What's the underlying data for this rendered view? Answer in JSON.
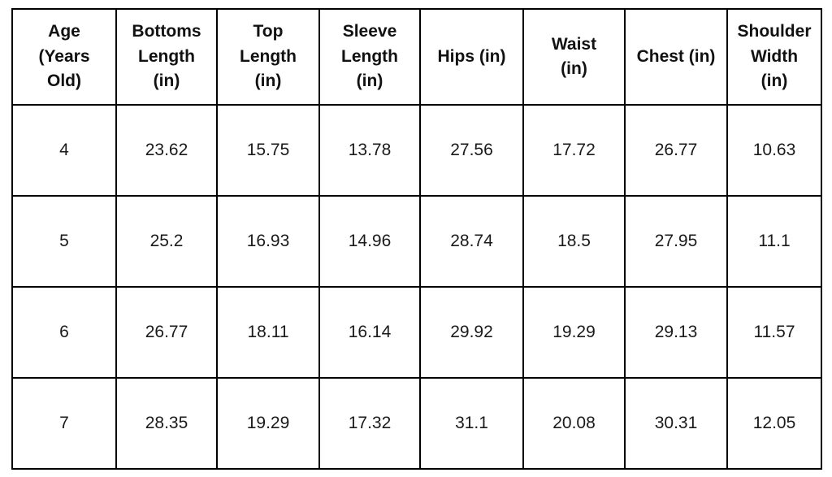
{
  "table": {
    "headers": [
      "Age\n(Years\nOld)",
      "Bottoms\nLength\n(in)",
      "Top\nLength\n(in)",
      "Sleeve\nLength\n(in)",
      "Hips (in)",
      "Waist\n(in)",
      "Chest (in)",
      "Shoulder\nWidth\n(in)"
    ],
    "rows": [
      [
        "4",
        "23.62",
        "15.75",
        "13.78",
        "27.56",
        "17.72",
        "26.77",
        "10.63"
      ],
      [
        "5",
        "25.2",
        "16.93",
        "14.96",
        "28.74",
        "18.5",
        "27.95",
        "11.1"
      ],
      [
        "6",
        "26.77",
        "18.11",
        "16.14",
        "29.92",
        "19.29",
        "29.13",
        "11.57"
      ],
      [
        "7",
        "28.35",
        "19.29",
        "17.32",
        "31.1",
        "20.08",
        "30.31",
        "12.05"
      ]
    ],
    "border_color": "#000000",
    "background_color": "#ffffff",
    "text_color": "#111111"
  },
  "chart_data": {
    "type": "table",
    "title": "",
    "columns": [
      "Age (Years Old)",
      "Bottoms Length (in)",
      "Top Length (in)",
      "Sleeve Length (in)",
      "Hips (in)",
      "Waist (in)",
      "Chest (in)",
      "Shoulder Width (in)"
    ],
    "rows": [
      [
        4,
        23.62,
        15.75,
        13.78,
        27.56,
        17.72,
        26.77,
        10.63
      ],
      [
        5,
        25.2,
        16.93,
        14.96,
        28.74,
        18.5,
        27.95,
        11.1
      ],
      [
        6,
        26.77,
        18.11,
        16.14,
        29.92,
        19.29,
        29.13,
        11.57
      ],
      [
        7,
        28.35,
        19.29,
        17.32,
        31.1,
        20.08,
        30.31,
        12.05
      ]
    ]
  }
}
